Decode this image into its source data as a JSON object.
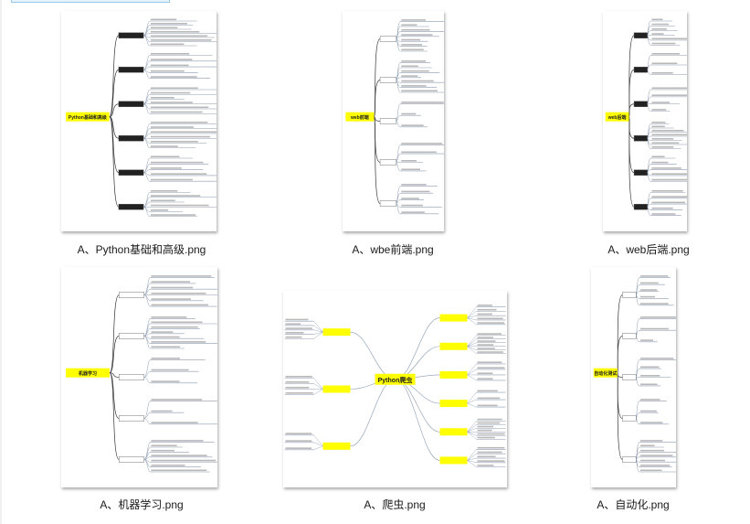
{
  "files": [
    {
      "name": "A、Python基础和高级.png",
      "layout": "tree",
      "root_label": "Python基础和高级"
    },
    {
      "name": "A、wbe前端.png",
      "layout": "tree",
      "root_label": "web前端"
    },
    {
      "name": "A、web后端.png",
      "layout": "tree",
      "root_label": "web后端"
    },
    {
      "name": "A、机器学习.png",
      "layout": "tree",
      "root_label": "机器学习"
    },
    {
      "name": "A、爬虫.png",
      "layout": "radial",
      "root_label": "Python爬虫"
    },
    {
      "name": "A、自动化.png",
      "layout": "tree",
      "root_label": "自动化测试"
    }
  ],
  "colors": {
    "node_highlight": "#ffff00",
    "line": "#8a9bb0",
    "text": "#1a1a1a"
  }
}
